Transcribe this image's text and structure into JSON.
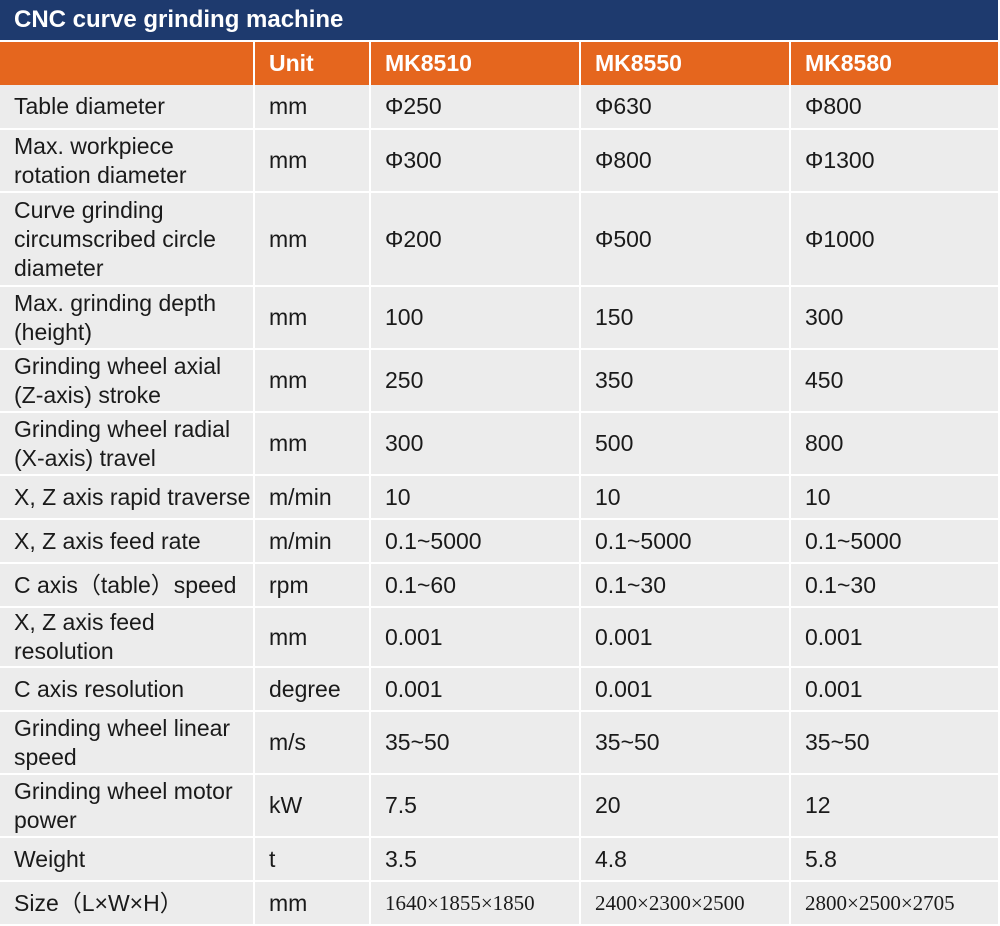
{
  "title": "CNC curve grinding machine",
  "columns": [
    "",
    "Unit",
    "MK8510",
    "MK8550",
    "MK8580"
  ],
  "rows": [
    {
      "param": "Table diameter",
      "unit": "mm",
      "v1": "Φ250",
      "v2": "Φ630",
      "v3": "Φ800"
    },
    {
      "param": "Max. workpiece rotation diameter",
      "unit": "mm",
      "v1": "Φ300",
      "v2": "Φ800",
      "v3": "Φ1300"
    },
    {
      "param": "Curve grinding circumscribed circle diameter",
      "unit": "mm",
      "v1": "Φ200",
      "v2": "Φ500",
      "v3": "Φ1000"
    },
    {
      "param": "Max. grinding depth (height)",
      "unit": "mm",
      "v1": "100",
      "v2": "150",
      "v3": "300"
    },
    {
      "param": "Grinding wheel axial (Z-axis) stroke",
      "unit": "mm",
      "v1": "250",
      "v2": "350",
      "v3": "450"
    },
    {
      "param": "Grinding wheel radial (X-axis) travel",
      "unit": "mm",
      "v1": "300",
      "v2": "500",
      "v3": "800"
    },
    {
      "param": "X, Z axis rapid traverse",
      "unit": "m/min",
      "v1": "10",
      "v2": "10",
      "v3": "10"
    },
    {
      "param": "X, Z axis feed rate",
      "unit": "m/min",
      "v1": "0.1~5000",
      "v2": "0.1~5000",
      "v3": "0.1~5000"
    },
    {
      "param": "C axis（table）speed",
      "unit": "rpm",
      "v1": "0.1~60",
      "v2": "0.1~30",
      "v3": "0.1~30"
    },
    {
      "param": "X, Z axis feed resolution",
      "unit": "mm",
      "v1": "0.001",
      "v2": "0.001",
      "v3": "0.001"
    },
    {
      "param": "C axis resolution",
      "unit": "degree",
      "v1": "0.001",
      "v2": "0.001",
      "v3": "0.001"
    },
    {
      "param": "Grinding wheel linear speed",
      "unit": "m/s",
      "v1": "35~50",
      "v2": "35~50",
      "v3": "35~50"
    },
    {
      "param": "Grinding wheel motor power",
      "unit": "kW",
      "v1": "7.5",
      "v2": "20",
      "v3": "12"
    },
    {
      "param": "Weight",
      "unit": "t",
      "v1": "3.5",
      "v2": "4.8",
      "v3": "5.8"
    },
    {
      "param": "Size（L×W×H）",
      "unit": "mm",
      "v1": "1640×1855×1850",
      "v2": "2400×2300×2500",
      "v3": "2800×2500×2705"
    }
  ]
}
